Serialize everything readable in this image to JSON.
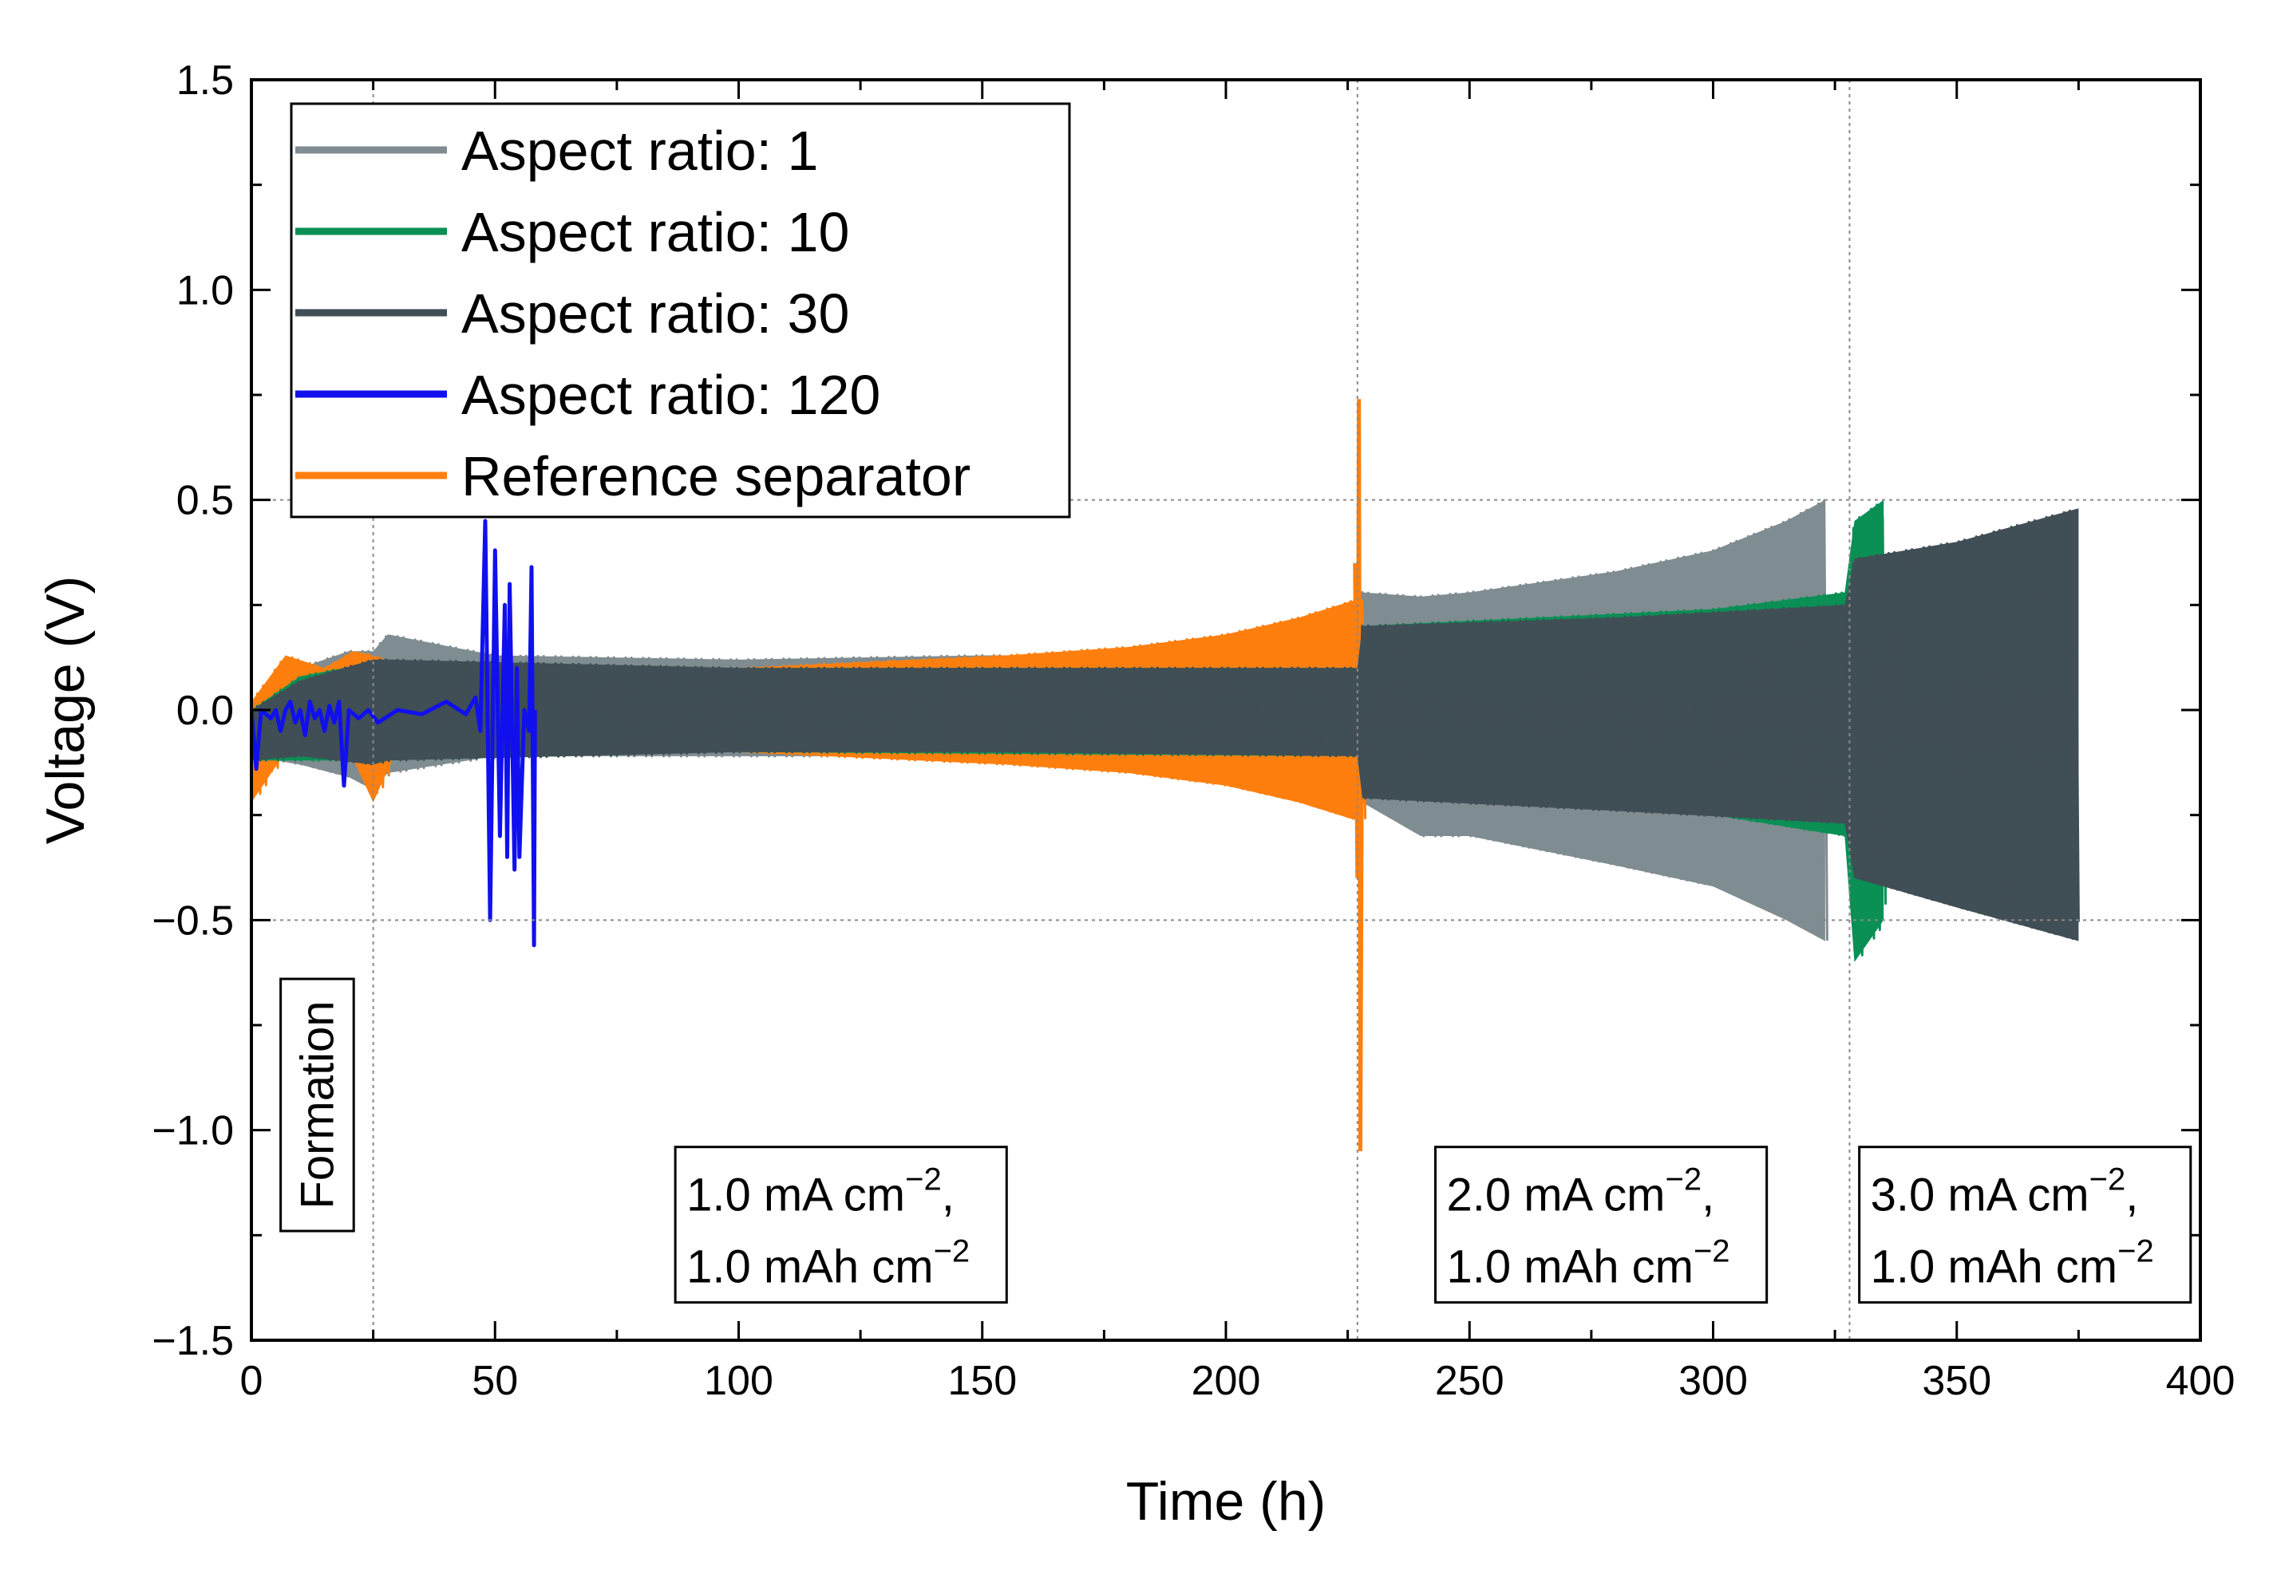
{
  "chart_data": {
    "type": "line",
    "xlabel": "Time (h)",
    "ylabel": "Voltage (V)",
    "xlim": [
      0,
      400
    ],
    "ylim": [
      -1.5,
      1.5
    ],
    "xticks": [
      0,
      50,
      100,
      150,
      200,
      250,
      300,
      350,
      400
    ],
    "xtick_labels": [
      "0",
      "50",
      "100",
      "150",
      "200",
      "250",
      "300",
      "350",
      "400"
    ],
    "yticks": [
      -1.5,
      -1.0,
      -0.5,
      0.0,
      0.5,
      1.0,
      1.5
    ],
    "ytick_labels": [
      "−1.5",
      "−1.0",
      "−0.5",
      "0.0",
      "0.5",
      "1.0",
      "1.5"
    ],
    "grid": "dotted reference lines at y = ±0.5 and at x = 25, 227, 328",
    "vlines": [
      25,
      227,
      328
    ],
    "hlines": [
      0.5,
      -0.5
    ],
    "legend_position": "top-left",
    "series": [
      {
        "name": "Aspect ratio: 1",
        "color": "#7f8c91",
        "end": 323,
        "envelope": [
          {
            "t": 0,
            "up": 0.0,
            "lo": -0.15
          },
          {
            "t": 5,
            "up": 0.06,
            "lo": -0.12
          },
          {
            "t": 10,
            "up": 0.1,
            "lo": -0.13
          },
          {
            "t": 20,
            "up": 0.14,
            "lo": -0.16
          },
          {
            "t": 25,
            "up": 0.14,
            "lo": -0.19
          },
          {
            "t": 28,
            "up": 0.18,
            "lo": -0.15
          },
          {
            "t": 50,
            "up": 0.13,
            "lo": -0.11
          },
          {
            "t": 100,
            "up": 0.12,
            "lo": -0.11
          },
          {
            "t": 150,
            "up": 0.13,
            "lo": -0.11
          },
          {
            "t": 200,
            "up": 0.13,
            "lo": -0.12
          },
          {
            "t": 226,
            "up": 0.14,
            "lo": -0.12
          },
          {
            "t": 228,
            "up": 0.28,
            "lo": -0.22
          },
          {
            "t": 240,
            "up": 0.27,
            "lo": -0.3
          },
          {
            "t": 250,
            "up": 0.28,
            "lo": -0.3
          },
          {
            "t": 280,
            "up": 0.33,
            "lo": -0.37
          },
          {
            "t": 300,
            "up": 0.38,
            "lo": -0.42
          },
          {
            "t": 315,
            "up": 0.45,
            "lo": -0.5
          },
          {
            "t": 323,
            "up": 0.5,
            "lo": -0.55
          }
        ]
      },
      {
        "name": "Aspect ratio: 10",
        "color": "#0a8f55",
        "end": 335,
        "envelope": [
          {
            "t": 0,
            "up": 0.0,
            "lo": -0.12
          },
          {
            "t": 10,
            "up": 0.08,
            "lo": -0.12
          },
          {
            "t": 28,
            "up": 0.12,
            "lo": -0.12
          },
          {
            "t": 100,
            "up": 0.1,
            "lo": -0.1
          },
          {
            "t": 227,
            "up": 0.1,
            "lo": -0.11
          },
          {
            "t": 228,
            "up": 0.2,
            "lo": -0.2
          },
          {
            "t": 300,
            "up": 0.24,
            "lo": -0.25
          },
          {
            "t": 327,
            "up": 0.28,
            "lo": -0.3
          },
          {
            "t": 329,
            "up": 0.45,
            "lo": -0.6
          },
          {
            "t": 335,
            "up": 0.5,
            "lo": -0.5
          }
        ]
      },
      {
        "name": "Aspect ratio: 30",
        "color": "#404e55",
        "end": 375,
        "envelope": [
          {
            "t": 0,
            "up": 0.0,
            "lo": -0.12
          },
          {
            "t": 10,
            "up": 0.07,
            "lo": -0.11
          },
          {
            "t": 25,
            "up": 0.12,
            "lo": -0.13
          },
          {
            "t": 28,
            "up": 0.12,
            "lo": -0.12
          },
          {
            "t": 100,
            "up": 0.1,
            "lo": -0.1
          },
          {
            "t": 150,
            "up": 0.1,
            "lo": -0.1
          },
          {
            "t": 227,
            "up": 0.1,
            "lo": -0.11
          },
          {
            "t": 228,
            "up": 0.2,
            "lo": -0.21
          },
          {
            "t": 280,
            "up": 0.22,
            "lo": -0.24
          },
          {
            "t": 327,
            "up": 0.25,
            "lo": -0.27
          },
          {
            "t": 329,
            "up": 0.36,
            "lo": -0.4
          },
          {
            "t": 350,
            "up": 0.4,
            "lo": -0.47
          },
          {
            "t": 375,
            "up": 0.48,
            "lo": -0.55
          }
        ]
      },
      {
        "name": "Aspect ratio: 120",
        "color": "#1010ee",
        "end": 58,
        "samples": [
          [
            0,
            0.0
          ],
          [
            1,
            -0.14
          ],
          [
            2,
            0.0
          ],
          [
            4,
            -0.02
          ],
          [
            5,
            0.0
          ],
          [
            6,
            -0.05
          ],
          [
            7,
            0.0
          ],
          [
            8,
            0.02
          ],
          [
            9,
            -0.03
          ],
          [
            10,
            0.0
          ],
          [
            11,
            -0.06
          ],
          [
            12,
            0.02
          ],
          [
            13,
            -0.02
          ],
          [
            14,
            0.0
          ],
          [
            15,
            -0.05
          ],
          [
            16,
            0.01
          ],
          [
            17,
            -0.03
          ],
          [
            18,
            0.02
          ],
          [
            19,
            -0.18
          ],
          [
            20,
            0.0
          ],
          [
            22,
            -0.02
          ],
          [
            24,
            0.0
          ],
          [
            26,
            -0.03
          ],
          [
            30,
            0.0
          ],
          [
            35,
            -0.01
          ],
          [
            40,
            0.02
          ],
          [
            44,
            -0.01
          ],
          [
            46,
            0.03
          ],
          [
            47,
            -0.05
          ],
          [
            48,
            0.45
          ],
          [
            49,
            -0.5
          ],
          [
            50,
            0.38
          ],
          [
            51,
            -0.3
          ],
          [
            52,
            0.25
          ],
          [
            52.5,
            -0.35
          ],
          [
            53,
            0.3
          ],
          [
            54,
            -0.38
          ],
          [
            54.5,
            0.1
          ],
          [
            55,
            -0.35
          ],
          [
            56,
            0.0
          ],
          [
            57,
            -0.05
          ],
          [
            57.5,
            0.34
          ],
          [
            58,
            -0.56
          ],
          [
            58.2,
            0.0
          ]
        ]
      },
      {
        "name": "Reference separator",
        "color": "#ff7f0e",
        "end": 228,
        "envelope": [
          {
            "t": 0,
            "up": 0.02,
            "lo": -0.22
          },
          {
            "t": 7,
            "up": 0.13,
            "lo": -0.1
          },
          {
            "t": 15,
            "up": 0.1,
            "lo": -0.1
          },
          {
            "t": 21,
            "up": 0.14,
            "lo": -0.12
          },
          {
            "t": 25,
            "up": 0.13,
            "lo": -0.22
          },
          {
            "t": 30,
            "up": 0.11,
            "lo": -0.09
          },
          {
            "t": 50,
            "up": 0.11,
            "lo": -0.1
          },
          {
            "t": 100,
            "up": 0.1,
            "lo": -0.1
          },
          {
            "t": 155,
            "up": 0.13,
            "lo": -0.13
          },
          {
            "t": 180,
            "up": 0.15,
            "lo": -0.15
          },
          {
            "t": 200,
            "up": 0.18,
            "lo": -0.18
          },
          {
            "t": 215,
            "up": 0.22,
            "lo": -0.22
          },
          {
            "t": 226,
            "up": 0.26,
            "lo": -0.26
          }
        ],
        "spike": [
          [
            226.5,
            0.35
          ],
          [
            227,
            -0.4
          ],
          [
            227.3,
            0.74
          ],
          [
            227.6,
            -1.05
          ],
          [
            228,
            0.2
          ]
        ]
      }
    ],
    "annotations": [
      {
        "name": "formation",
        "text": "Formation",
        "x_range": [
          6,
          21
        ],
        "y_range": [
          -1.24,
          -0.64
        ]
      },
      {
        "name": "rate-1",
        "lines": [
          "1.0 mA cm",
          "−2",
          ",",
          "1.0 mAh cm",
          "−2"
        ],
        "x_range": [
          87,
          155
        ],
        "y_range": [
          -1.41,
          -1.04
        ]
      },
      {
        "name": "rate-2",
        "lines": [
          "2.0 mA cm",
          "−2",
          ",",
          "1.0 mAh cm",
          "−2"
        ],
        "x_range": [
          243,
          311
        ],
        "y_range": [
          -1.41,
          -1.04
        ]
      },
      {
        "name": "rate-3",
        "lines": [
          "3.0 mA cm",
          "−2",
          ",",
          "1.0 mAh cm",
          "−2"
        ],
        "x_range": [
          330,
          398
        ],
        "y_range": [
          -1.41,
          -1.04
        ]
      }
    ]
  }
}
